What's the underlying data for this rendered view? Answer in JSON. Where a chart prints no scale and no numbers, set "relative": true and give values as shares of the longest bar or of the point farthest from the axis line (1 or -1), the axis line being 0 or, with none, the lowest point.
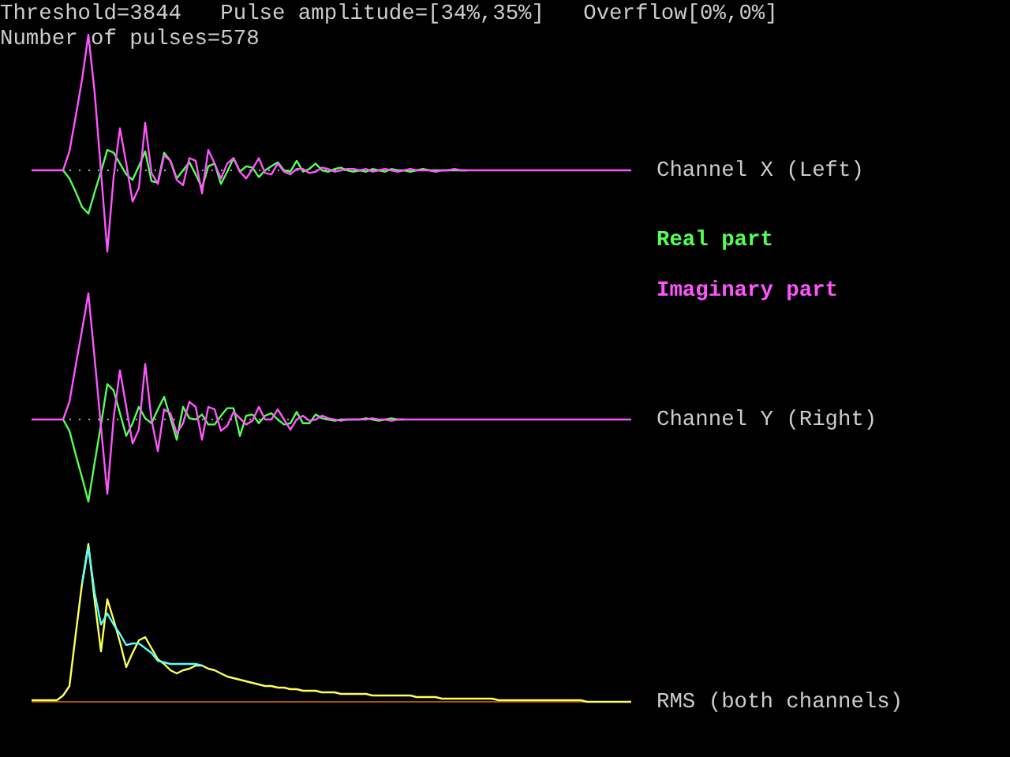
{
  "chart_data": [
    {
      "type": "line",
      "relative": true,
      "legend": "right",
      "annotations": [
        "Threshold=3844   Pulse amplitude=[34%,35%]   Overflow[0%,0%]",
        "Number of pulses=578",
        "Channel X (Left)"
      ],
      "ref_lines": [
        {
          "axis": "y",
          "value": 0,
          "color": "#aaaaaa",
          "line_style": "dotted"
        }
      ],
      "categories": [
        null,
        null,
        null,
        null,
        null,
        null,
        null,
        null,
        null,
        null,
        null,
        null,
        null,
        null,
        null,
        null,
        null,
        null,
        null,
        null,
        null,
        null,
        null,
        null,
        null,
        null,
        null,
        null,
        null,
        null,
        null,
        null,
        null,
        null,
        null,
        null,
        null,
        null,
        null,
        null,
        null,
        null,
        null,
        null,
        null,
        null,
        null,
        null,
        null,
        null,
        null,
        null,
        null,
        null,
        null,
        null,
        null,
        null,
        null,
        null,
        null,
        null,
        null,
        null,
        null,
        null,
        null,
        null,
        null,
        null,
        null,
        null,
        null,
        null,
        null,
        null,
        null,
        null,
        null,
        null,
        null,
        null,
        null,
        null,
        null,
        null,
        null,
        null,
        null,
        null,
        null,
        null,
        null,
        null,
        null,
        null
      ],
      "series": [
        {
          "name": "Real part",
          "color": "#55ff55",
          "values": [
            null,
            null,
            null,
            null,
            null,
            0,
            -0.06,
            -0.16,
            -0.27,
            -0.32,
            -0.16,
            -0.01,
            0.15,
            0.13,
            0.05,
            -0.03,
            -0.07,
            0.03,
            0.14,
            -0.08,
            -0.09,
            0.13,
            0.07,
            -0.06,
            0,
            0.06,
            -0.03,
            -0.13,
            0.03,
            0.05,
            -0.1,
            -0.01,
            0.09,
            -0.01,
            0.03,
            0.02,
            -0.05,
            0,
            0.03,
            0.06,
            0,
            -0.01,
            0.07,
            -0.01,
            0.01,
            0.05,
            0,
            -0.01,
            0.01,
            0.02,
            0,
            -0.01,
            0,
            -0.01,
            0.01,
            0,
            -0.01,
            0.01,
            0,
            0,
            -0.01,
            0,
            0.01,
            0,
            0,
            0,
            0,
            0,
            0,
            0,
            null,
            null,
            null,
            null,
            null,
            null,
            null,
            null,
            null,
            null,
            null,
            null,
            null,
            null,
            null,
            null,
            null,
            null,
            null,
            null,
            null,
            null,
            null,
            null,
            null,
            null
          ]
        },
        {
          "name": "Imaginary part",
          "color": "#ff55ff",
          "values": [
            0,
            0,
            0,
            0,
            0,
            0,
            0.14,
            0.4,
            0.67,
            1,
            0.57,
            -0.01,
            -0.6,
            -0.05,
            0.31,
            0.05,
            -0.23,
            -0.13,
            0.35,
            -0.02,
            -0.1,
            0.11,
            0.07,
            -0.07,
            -0.11,
            0.09,
            0.07,
            -0.17,
            0.15,
            0.05,
            -0.06,
            0.05,
            0.09,
            -0.01,
            -0.06,
            0.01,
            0.09,
            -0.02,
            -0.03,
            0.05,
            -0.01,
            -0.03,
            0.01,
            0.01,
            -0.02,
            -0.01,
            0.02,
            0.01,
            -0.01,
            0,
            0.01,
            0.01,
            0,
            0.01,
            -0.01,
            0,
            0.01,
            0,
            -0.01,
            0,
            0.01,
            0,
            0,
            0,
            -0.01,
            0,
            0,
            0.01,
            0,
            0,
            0,
            0,
            0,
            0,
            0,
            0,
            0,
            0,
            0,
            0,
            0,
            0,
            0,
            0,
            0,
            0,
            0,
            0,
            0,
            0,
            0,
            0,
            0,
            0,
            0,
            0
          ]
        }
      ]
    },
    {
      "type": "line",
      "relative": true,
      "annotations": [
        "Channel Y (Right)"
      ],
      "ref_lines": [
        {
          "axis": "y",
          "value": 0,
          "color": "#aaaaaa",
          "line_style": "dotted"
        }
      ],
      "categories": [
        null,
        null,
        null,
        null,
        null,
        null,
        null,
        null,
        null,
        null,
        null,
        null,
        null,
        null,
        null,
        null,
        null,
        null,
        null,
        null,
        null,
        null,
        null,
        null,
        null,
        null,
        null,
        null,
        null,
        null,
        null,
        null,
        null,
        null,
        null,
        null,
        null,
        null,
        null,
        null,
        null,
        null,
        null,
        null,
        null,
        null,
        null,
        null,
        null,
        null,
        null,
        null,
        null,
        null,
        null,
        null,
        null,
        null,
        null,
        null,
        null,
        null,
        null,
        null,
        null,
        null,
        null,
        null,
        null,
        null,
        null,
        null,
        null,
        null,
        null,
        null,
        null,
        null,
        null,
        null,
        null,
        null,
        null,
        null,
        null,
        null,
        null,
        null,
        null,
        null,
        null,
        null,
        null,
        null,
        null,
        null
      ],
      "series": [
        {
          "color": "#55ff55",
          "values": [
            null,
            null,
            null,
            null,
            null,
            0,
            -0.09,
            -0.28,
            -0.46,
            -0.65,
            -0.34,
            -0.04,
            0.28,
            0.23,
            0.05,
            -0.13,
            -0.03,
            0.1,
            0.01,
            -0.03,
            0.08,
            0.18,
            0.01,
            -0.16,
            0.1,
            0.01,
            0,
            0.04,
            -0.04,
            -0.04,
            0.03,
            0.09,
            0.09,
            -0.13,
            0.03,
            0.04,
            -0.03,
            0.03,
            0.05,
            0,
            -0.04,
            -0.03,
            0.06,
            -0.03,
            -0.03,
            0.04,
            0.01,
            0,
            -0.01,
            0,
            0,
            0,
            0,
            0.01,
            0,
            -0.01,
            0,
            0.01,
            0,
            0,
            null,
            null,
            null,
            null,
            null,
            null,
            null,
            null,
            null,
            null,
            null,
            null,
            null,
            null,
            null,
            null,
            null,
            null,
            null,
            null,
            null,
            null,
            null,
            null,
            null,
            null,
            null,
            null,
            null,
            null,
            null,
            null,
            null,
            null,
            null,
            null
          ]
        },
        {
          "color": "#ff55ff",
          "values": [
            0,
            0,
            0,
            0,
            0,
            0,
            0.14,
            0.43,
            0.71,
            1,
            0.48,
            -0.06,
            -0.59,
            0.01,
            0.39,
            0.1,
            -0.19,
            -0.08,
            0.44,
            0,
            -0.25,
            0.08,
            0.05,
            -0.11,
            -0.03,
            0.14,
            0.1,
            -0.16,
            0.1,
            0.08,
            -0.09,
            -0.05,
            0.06,
            0.01,
            -0.04,
            -0.01,
            0.1,
            0,
            0,
            0.08,
            0,
            -0.08,
            0,
            0.03,
            -0.01,
            0,
            0.03,
            0.01,
            0,
            -0.01,
            0,
            0,
            0,
            0,
            0.01,
            0,
            0,
            -0.01,
            0,
            0,
            0,
            0,
            0,
            0,
            0,
            0,
            0,
            0,
            0,
            0,
            0,
            0,
            0,
            0,
            0,
            0,
            0,
            0,
            0,
            0,
            0,
            0,
            0,
            0,
            0,
            0,
            0,
            0,
            0,
            0,
            0,
            0,
            0,
            0,
            0,
            0
          ]
        }
      ]
    },
    {
      "type": "line",
      "relative": true,
      "annotations": [
        "RMS (both channels)"
      ],
      "ref_lines": [
        {
          "axis": "y",
          "value": 0,
          "color": "#aa5500",
          "line_style": "solid"
        }
      ],
      "categories": [
        null,
        null,
        null,
        null,
        null,
        null,
        null,
        null,
        null,
        null,
        null,
        null,
        null,
        null,
        null,
        null,
        null,
        null,
        null,
        null,
        null,
        null,
        null,
        null,
        null,
        null,
        null,
        null,
        null,
        null,
        null,
        null,
        null,
        null,
        null,
        null,
        null,
        null,
        null,
        null,
        null,
        null,
        null,
        null,
        null,
        null,
        null,
        null,
        null,
        null,
        null,
        null,
        null,
        null,
        null,
        null,
        null,
        null,
        null,
        null,
        null,
        null,
        null,
        null,
        null,
        null,
        null,
        null,
        null,
        null,
        null,
        null,
        null,
        null,
        null,
        null,
        null,
        null,
        null,
        null,
        null,
        null,
        null,
        null,
        null,
        null,
        null,
        null,
        null,
        null,
        null,
        null,
        null,
        null,
        null,
        null
      ],
      "series": [
        {
          "color": "#ffff55",
          "values": [
            0.01,
            0.01,
            0.01,
            0.01,
            0.01,
            0.04,
            0.1,
            0.43,
            0.75,
            1,
            0.64,
            0.32,
            0.65,
            0.52,
            0.38,
            0.22,
            0.31,
            0.39,
            0.41,
            0.34,
            0.27,
            0.24,
            0.2,
            0.18,
            0.2,
            0.21,
            0.23,
            0.23,
            0.21,
            0.2,
            0.18,
            0.16,
            0.15,
            0.14,
            0.13,
            0.12,
            0.11,
            0.1,
            0.1,
            0.09,
            0.09,
            0.08,
            0.08,
            0.07,
            0.07,
            0.07,
            0.06,
            0.06,
            0.06,
            0.05,
            0.05,
            0.05,
            0.05,
            0.05,
            0.04,
            0.04,
            0.04,
            0.04,
            0.04,
            0.04,
            0.04,
            0.03,
            0.03,
            0.03,
            0.03,
            0.02,
            0.02,
            0.02,
            0.02,
            0.02,
            0.02,
            0.02,
            0.02,
            0.02,
            0.01,
            0.01,
            0.01,
            0.01,
            0.01,
            0.01,
            0.01,
            0.01,
            0.01,
            0.01,
            0.01,
            0.01,
            0.01,
            0.01,
            0,
            0,
            0,
            0,
            0,
            0,
            0,
            0
          ]
        },
        {
          "color": "#55ffff",
          "values": [
            null,
            null,
            null,
            null,
            null,
            null,
            null,
            null,
            0.75,
            0.98,
            0.69,
            0.49,
            0.56,
            0.49,
            0.43,
            0.36,
            0.37,
            0.37,
            0.34,
            0.31,
            0.26,
            0.25,
            0.24,
            0.24,
            0.24,
            0.24,
            0.24,
            0.23,
            null,
            null,
            null,
            null,
            null,
            null,
            null,
            null,
            null,
            null,
            null,
            null,
            null,
            null,
            null,
            null,
            null,
            null,
            null,
            null,
            null,
            null,
            null,
            null,
            null,
            null,
            null,
            null,
            null,
            null,
            null,
            null,
            null,
            null,
            null,
            null,
            null,
            null,
            null,
            null,
            null,
            null,
            null,
            null,
            null,
            null,
            null,
            null,
            null,
            null,
            null,
            null,
            null,
            null,
            null,
            null,
            null,
            null,
            null,
            null,
            null,
            null,
            null,
            null,
            null,
            null,
            null,
            null
          ]
        }
      ]
    }
  ]
}
